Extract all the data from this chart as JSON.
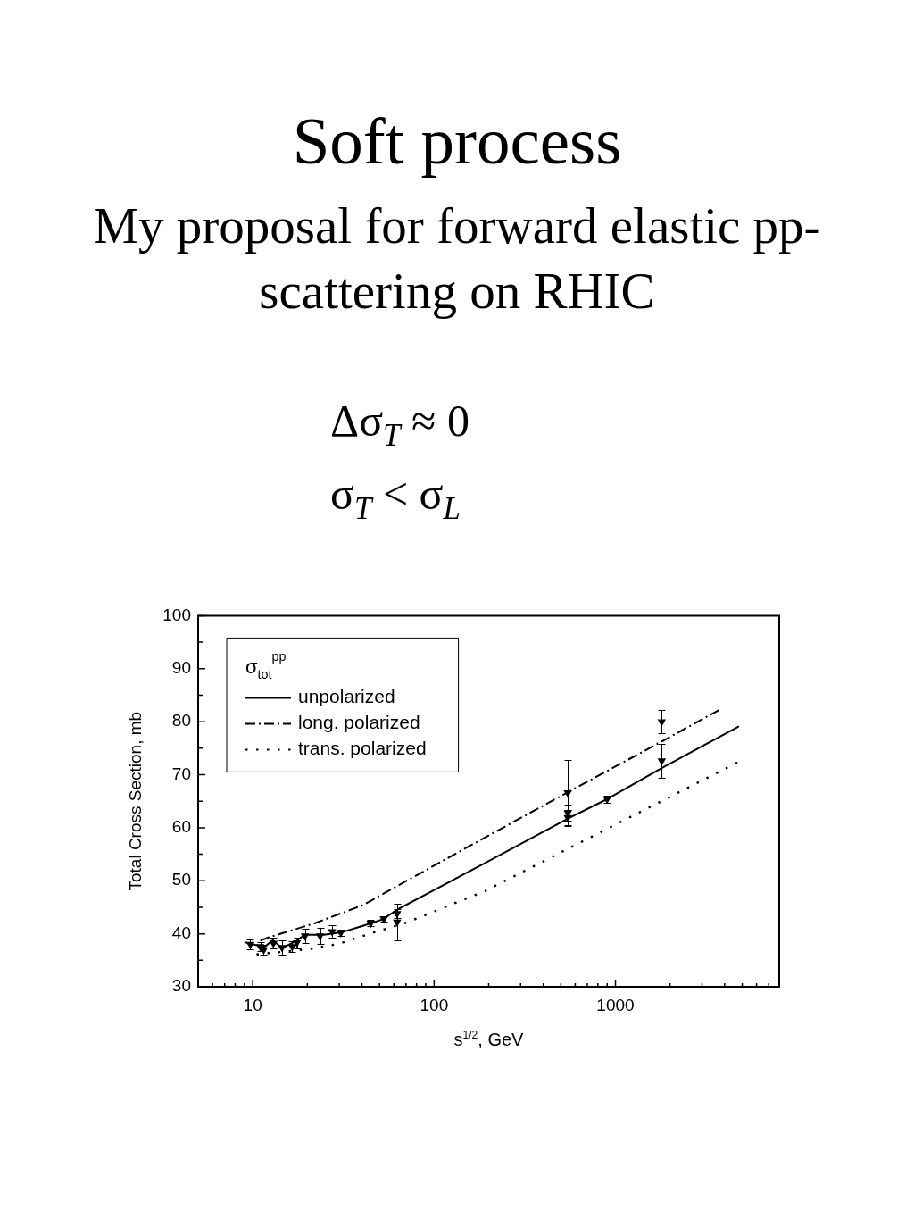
{
  "chart_data": {
    "type": "line",
    "title": "Soft process",
    "subtitle": "My proposal for forward elastic pp-scattering on RHIC",
    "annotations": [
      "Δσ$_{T}$ ≈ 0",
      "σ$_{T}$ < σ$_{L}$"
    ],
    "xlabel": "s$^{1/2}$, GeV",
    "ylabel": "Total Cross Section, mb",
    "legend_title": "σ$_{tot}$$^{pp}$",
    "legend": "top left",
    "log": "x",
    "grid": false,
    "xlim": [
      5,
      8000
    ],
    "xticks": [
      {
        "value": 6,
        "label": null
      },
      {
        "value": 7,
        "label": null
      },
      {
        "value": 8,
        "label": null
      },
      {
        "value": 9,
        "label": null
      },
      10,
      {
        "value": 20,
        "label": null
      },
      {
        "value": 30,
        "label": null
      },
      {
        "value": 40,
        "label": null
      },
      {
        "value": 50,
        "label": null
      },
      {
        "value": 60,
        "label": null
      },
      {
        "value": 70,
        "label": null
      },
      {
        "value": 80,
        "label": null
      },
      {
        "value": 90,
        "label": null
      },
      100,
      {
        "value": 200,
        "label": null
      },
      {
        "value": 300,
        "label": null
      },
      {
        "value": 400,
        "label": null
      },
      {
        "value": 500,
        "label": null
      },
      {
        "value": 600,
        "label": null
      },
      {
        "value": 700,
        "label": null
      },
      {
        "value": 800,
        "label": null
      },
      {
        "value": 900,
        "label": null
      },
      1000,
      {
        "value": 2000,
        "label": null
      },
      {
        "value": 3000,
        "label": null
      },
      {
        "value": 4000,
        "label": null
      },
      {
        "value": 5000,
        "label": null
      },
      {
        "value": 6000,
        "label": null
      },
      {
        "value": 7000,
        "label": null
      }
    ],
    "ylim": [
      30,
      100
    ],
    "yticks": [
      30,
      {
        "value": 35,
        "label": null
      },
      40,
      {
        "value": 45,
        "label": null
      },
      50,
      {
        "value": 55,
        "label": null
      },
      60,
      {
        "value": 65,
        "label": null
      },
      70,
      {
        "value": 75,
        "label": null
      },
      80,
      {
        "value": 85,
        "label": null
      },
      90,
      {
        "value": 95,
        "label": null
      },
      100
    ],
    "series": [
      {
        "name": "unpolarized",
        "color": "#000000",
        "line_style": "solid",
        "x": [
          9,
          11.6,
          12.9,
          14.5,
          17.5,
          19.3,
          24.7,
          31,
          40.5,
          51.8,
          63.8,
          185,
          553,
          912,
          1808,
          4800
        ],
        "values": [
          38.4,
          37.5,
          38.8,
          37.3,
          38.7,
          39.8,
          39.8,
          40.3,
          41.5,
          42.7,
          44.7,
          53.1,
          61.8,
          65.5,
          71.3,
          79.1
        ]
      },
      {
        "name": "long. polarized",
        "color": "#000000",
        "line_style": "dashdot",
        "x": [
          11,
          12.2,
          22,
          40.5,
          64,
          185,
          553,
          1808,
          3725
        ],
        "values": [
          38.7,
          39.3,
          42.0,
          45.4,
          49.2,
          57.9,
          66.8,
          76.3,
          82.2
        ]
      },
      {
        "name": "trans. polarized",
        "color": "#000000",
        "line_style": "dotted",
        "x": [
          10.5,
          20.4,
          29.8,
          47,
          69,
          192,
          949,
          4700
        ],
        "values": [
          36.1,
          37.1,
          38.1,
          40.3,
          42.0,
          48.1,
          60.2,
          72.3
        ]
      },
      {
        "type": "scatter",
        "color": "#000000",
        "marker": "triangle",
        "x": [
          9.7,
          11,
          11.5,
          13,
          14.5,
          16.5,
          17.5,
          19.4,
          23.5,
          27.4,
          30.6,
          44.7,
          52.8,
          62.5,
          62.5,
          546,
          546,
          546,
          900,
          1800,
          1800
        ],
        "values": [
          38.0,
          37.6,
          37.0,
          38.2,
          37.4,
          37.6,
          38.3,
          39.6,
          39.6,
          40.4,
          40.2,
          42.0,
          42.8,
          43.8,
          42.2,
          66.6,
          62.8,
          61.9,
          65.4,
          80.0,
          72.6
        ],
        "errors": [
          1.0,
          0.8,
          1.0,
          1.0,
          1.3,
          1.0,
          1.0,
          1.3,
          1.5,
          1.2,
          0.6,
          0.6,
          0.5,
          0.8,
          3.4,
          6.1,
          1.5,
          1.5,
          0.7,
          2.2,
          3.2
        ]
      }
    ]
  }
}
